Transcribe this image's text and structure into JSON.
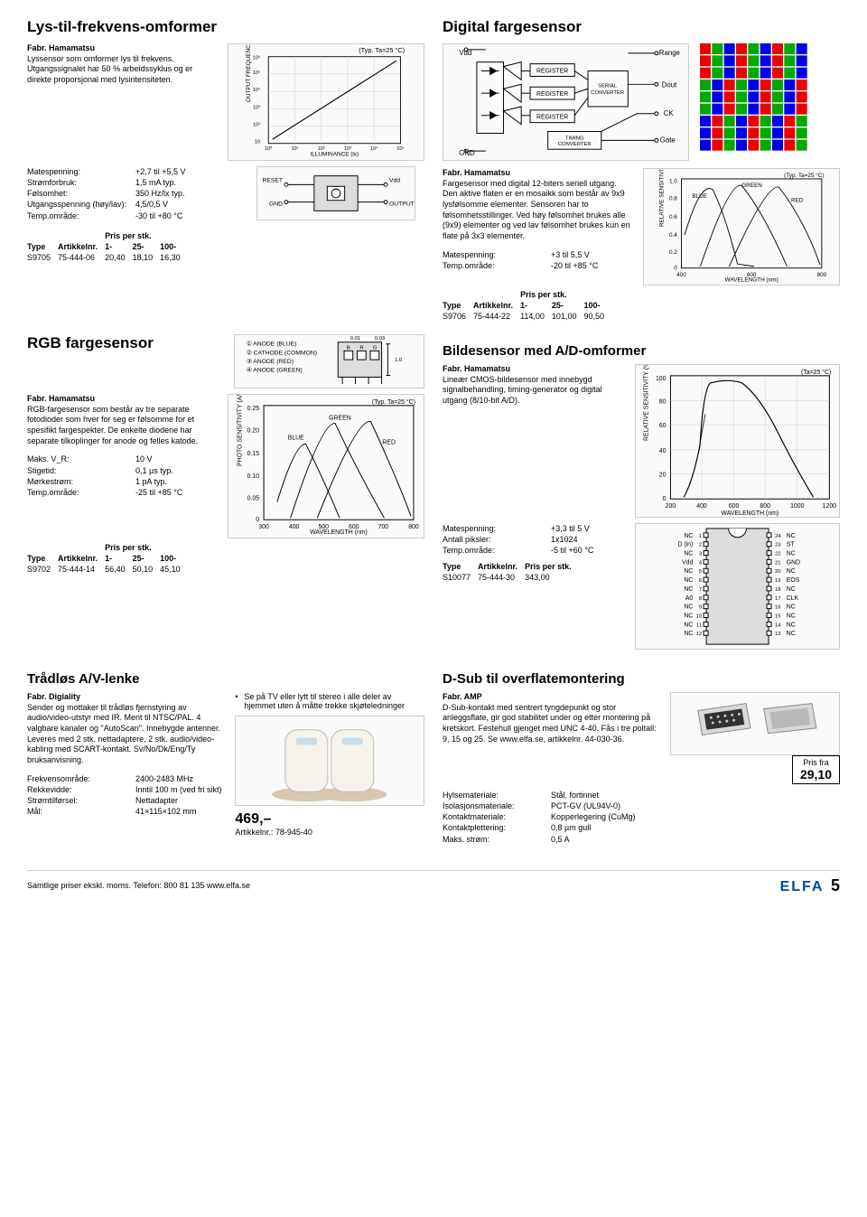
{
  "sec1": {
    "title": "Lys-til-frekvens-omformer",
    "manuf": "Fabr. Hamamatsu",
    "desc": "Lyssensor som omformer lys til frekvens. Utgangssignalet har 50 % arbeidssyklus og er direkte proporsjonal med lysintensiteten.",
    "specs": [
      {
        "l": "Matespenning:",
        "v": "+2,7 til +5,5 V"
      },
      {
        "l": "Strømforbruk:",
        "v": "1,5 mA typ."
      },
      {
        "l": "Følsomhet:",
        "v": "350 Hz/lx typ."
      },
      {
        "l": "Utgangsspenning (høy/lav):",
        "v": "4,5/0,5 V"
      },
      {
        "l": "Temp.område:",
        "v": "-30 til +80 °C"
      }
    ],
    "price_hdr": [
      "Type",
      "Artikkelnr.",
      "1-",
      "25-",
      "100-"
    ],
    "price_rows": [
      [
        "S9705",
        "75-444-06",
        "20,40",
        "18,10",
        "16,30"
      ]
    ],
    "pris_label": "Pris per stk."
  },
  "sec2": {
    "title": "RGB fargesensor",
    "manuf": "Fabr. Hamamatsu",
    "desc": "RGB-fargesensor som består av tre separate fotodioder som hver for seg er følsomme for et spesifikt fargespekter. De enkelte diodene har separate tilkoplinger for anode og felles katode.",
    "specs": [
      {
        "l": "Maks. V_R:",
        "v": "10 V"
      },
      {
        "l": "Stigetid:",
        "v": "0,1 µs typ."
      },
      {
        "l": "Mørkestrøm:",
        "v": "1 pA typ."
      },
      {
        "l": "Temp.område:",
        "v": "-25 til +85 °C"
      }
    ],
    "price_hdr": [
      "Type",
      "Artikkelnr.",
      "1-",
      "25-",
      "100-"
    ],
    "price_rows": [
      [
        "S9702",
        "75-444-14",
        "56,40",
        "50,10",
        "45,10"
      ]
    ],
    "pris_label": "Pris per stk."
  },
  "sec3": {
    "title": "Trådløs A/V-lenke",
    "manuf": "Fabr. Digiality",
    "desc": "Sender og mottaker til trådløs fjernstyring av audio/video-utstyr med IR. Ment til NTSC/PAL. 4 valgbare kanaler og \"AutoScan\". Innebygde antenner.\nLeveres med 2 stk. nettadaptere, 2 stk. audio/video-kabling med SCART-kontakt. Sv/No/Dk/Eng/Ty bruksanvisning.",
    "bullet": "Se på TV eller lytt til stereo i alle deler av hjemmet uten å måtte trekke skjøteledninger",
    "specs": [
      {
        "l": "Frekvensområde:",
        "v": "2400-2483 MHz"
      },
      {
        "l": "Rekkevidde:",
        "v": "Inntil 100 m (ved fri sikt)"
      },
      {
        "l": "Strømtilførsel:",
        "v": "Nettadapter"
      },
      {
        "l": "Mål:",
        "v": "41×115×102 mm"
      }
    ],
    "price": "469,–",
    "artnr_label": "Artikkelnr.: ",
    "artnr": "78-945-40"
  },
  "sec4": {
    "title": "Digital fargesensor",
    "manuf": "Fabr. Hamamatsu",
    "desc": "Fargesensor med digital 12-biters seriell utgang. Den aktive flaten er en mosaikk som består av 9x9 lysfølsomme elementer. Sensoren har to følsomhetsstillinger. Ved høy følsomhet brukes alle (9x9) elementer og ved lav følsomhet brukes kun en flate på 3x3 elementer.",
    "specs": [
      {
        "l": "Matespenning:",
        "v": "+3 til 5,5 V"
      },
      {
        "l": "Temp.område:",
        "v": "-20 til +85 °C"
      }
    ],
    "price_hdr": [
      "Type",
      "Artikkelnr.",
      "1-",
      "25-",
      "100-"
    ],
    "price_rows": [
      [
        "S9706",
        "75-444-22",
        "114,00",
        "101,00",
        "90,50"
      ]
    ],
    "pris_label": "Pris per stk."
  },
  "sec5": {
    "title": "Bildesensor med A/D-omformer",
    "manuf": "Fabr. Hamamatsu",
    "desc": "Lineær CMOS-bildesensor med innebygd signalbehandling, timing-generator og digital utgang (8/10-bit A/D).",
    "specs": [
      {
        "l": "Matespenning:",
        "v": "+3,3 til 5 V"
      },
      {
        "l": "Antall piksler:",
        "v": "1x1024"
      },
      {
        "l": "Temp.område:",
        "v": "-5 til +60 °C"
      }
    ],
    "price_hdr": [
      "Type",
      "Artikkelnr.",
      "Pris per stk."
    ],
    "price_rows": [
      [
        "S10077",
        "75-444-30",
        "343,00"
      ]
    ]
  },
  "sec6": {
    "title": "D-Sub til overflatemontering",
    "manuf": "Fabr. AMP",
    "desc": "D-Sub-kontakt med sentrert tyngdepunkt og stor anleggsflate, gir god stabilitet under og etter montering på kretskort. Festehull gjenget med UNC 4-40. Fås i tre poltall: 9, 15 og 25. Se www.elfa.se, artikkelnr. 44-030-36.",
    "specs": [
      {
        "l": "Hylsemateriale:",
        "v": "Stål, fortinnet"
      },
      {
        "l": "Isolasjonsmateriale:",
        "v": "PCT-GV (UL94V-0)"
      },
      {
        "l": "Kontaktmateriale:",
        "v": "Kopperlegering (CuMg)"
      },
      {
        "l": "Kontaktplettering:",
        "v": "0,8 µm gull"
      },
      {
        "l": "Maks. strøm:",
        "v": "0,5 A"
      }
    ],
    "pricebox_top": "Pris fra",
    "pricebox_val": "29,10"
  },
  "footer": {
    "left": "Samtlige priser ekskl. moms.    Telefon: 800 81 135   www.elfa.se",
    "brand": "ELFA",
    "page": "5"
  },
  "charts": {
    "freq_illum": {
      "xlabel": "ILLUMINANCE (lx)",
      "ylabel": "OUTPUT FREQUENCY (Hz)",
      "note": "(Typ. Ta=25 °C)",
      "xlim": [
        1,
        1000000.0
      ],
      "ylim": [
        10,
        1000000.0
      ],
      "logx": true,
      "logy": true,
      "line_color": "#000",
      "bg": "#fff"
    },
    "pinout1": {
      "pins": [
        "RESET",
        "GND",
        "Vdd",
        "OUTPUT"
      ],
      "box_color": "#000"
    },
    "block_diagram": {
      "labels": [
        "Vdd",
        "REGISTER",
        "REGISTER",
        "REGISTER",
        "TIMING CONVERTER",
        "SERIAL CONVERTER",
        "Range",
        "Dout",
        "CK",
        "Gate",
        "GND"
      ],
      "stroke": "#000"
    },
    "mosaic": {
      "cols": 9,
      "rows": 9,
      "colors": [
        "#e00",
        "#0a0",
        "#00e"
      ]
    },
    "rel_sens": {
      "xlabel": "WAVELENGTH (nm)",
      "ylabel": "RELATIVE SENSITIVITY",
      "note": "(Typ. Ta=25 °C)",
      "xlim": [
        400,
        800
      ],
      "ylim": [
        0,
        1
      ],
      "series": [
        {
          "name": "BLUE",
          "color": "#000"
        },
        {
          "name": "GREEN",
          "color": "#000"
        },
        {
          "name": "RED",
          "color": "#000"
        }
      ]
    },
    "rgb_pinout": {
      "labels": [
        "ANODE (BLUE)",
        "CATHODE (COMMON)",
        "ANODE (RED)",
        "ANODE (GREEN)",
        "B",
        "R",
        "G"
      ],
      "dims": [
        "0.01",
        "0.03",
        "1.0"
      ]
    },
    "photo_sens": {
      "xlabel": "WAVELENGTH (nm)",
      "ylabel": "PHOTO SENSITIVITY (A/W)",
      "note": "(Typ. Ta=25 °C)",
      "xlim": [
        300,
        800
      ],
      "ylim": [
        0,
        0.25
      ],
      "yticks": [
        0,
        0.05,
        0.1,
        0.15,
        0.2,
        0.25
      ],
      "series": [
        {
          "name": "BLUE",
          "color": "#000"
        },
        {
          "name": "GREEN",
          "color": "#000"
        },
        {
          "name": "RED",
          "color": "#000"
        }
      ]
    },
    "cmos_sens": {
      "xlabel": "WAVELENGTH (nm)",
      "ylabel": "RELATIVE SENSITIVITY (%)",
      "note": "(Ta=25 °C)",
      "xlim": [
        200,
        1200
      ],
      "xticks": [
        200,
        400,
        600,
        800,
        1000,
        1200
      ],
      "ylim": [
        0,
        100
      ],
      "yticks": [
        0,
        20,
        40,
        60,
        80,
        100
      ],
      "line_color": "#000"
    },
    "pinout24": {
      "left": [
        "NC",
        "D (in)",
        "NC",
        "Vdd",
        "NC",
        "NC",
        "NC",
        "A0",
        "NC",
        "NC",
        "NC",
        "NC"
      ],
      "left_nums": [
        1,
        2,
        3,
        4,
        5,
        6,
        7,
        8,
        9,
        10,
        11,
        12
      ],
      "right": [
        "NC",
        "ST",
        "NC",
        "GND",
        "NC",
        "EOS",
        "NC",
        "CLK",
        "NC",
        "NC",
        "NC",
        "NC"
      ],
      "right_nums": [
        24,
        23,
        22,
        21,
        20,
        19,
        18,
        17,
        16,
        15,
        14,
        13
      ]
    }
  }
}
